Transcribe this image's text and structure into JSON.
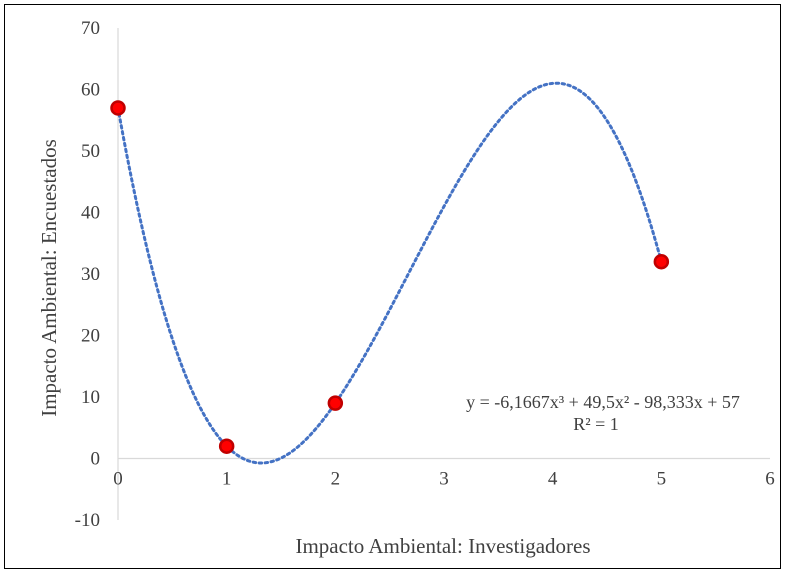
{
  "chart_data": {
    "type": "scatter",
    "xlabel": "Impacto Ambiental: Investigadores",
    "ylabel": "Impacto Ambiental: Encuestados",
    "xlim": [
      0,
      6
    ],
    "ylim": [
      -10,
      70
    ],
    "x_ticks": [
      0,
      1,
      2,
      3,
      4,
      5,
      6
    ],
    "y_ticks": [
      -10,
      0,
      10,
      20,
      30,
      40,
      50,
      60,
      70
    ],
    "points": [
      {
        "x": 0,
        "y": 57
      },
      {
        "x": 1,
        "y": 2
      },
      {
        "x": 2,
        "y": 9
      },
      {
        "x": 5,
        "y": 32
      }
    ],
    "trendline": {
      "type": "polynomial",
      "order": 3,
      "coefficients": [
        -6.1667,
        49.5,
        -98.333,
        57
      ],
      "x_range": [
        0,
        5
      ],
      "equation_text": "y = -6,1667x³  + 49,5x²  - 98,333x  + 57",
      "r2_text": "R² = 1",
      "color": "#4472C4"
    },
    "marker_color": "#FF0000",
    "marker_edge_color": "#C00000",
    "grid": false,
    "legend": "none"
  }
}
